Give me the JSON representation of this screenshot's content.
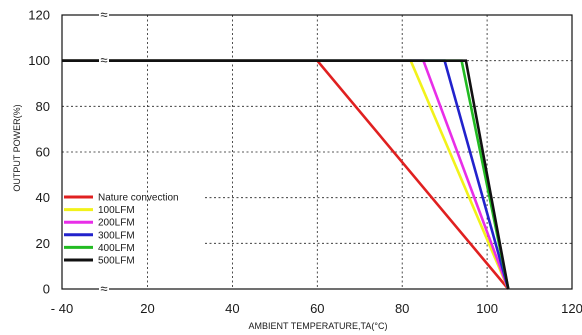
{
  "chart_data": {
    "type": "line",
    "xlabel": "AMBIENT TEMPERATURE,TA(°C)",
    "ylabel": "OUTPUT POWER(%)",
    "xlim": [
      -40,
      120
    ],
    "ylim": [
      0,
      120
    ],
    "x_ticks": [
      "- 40",
      "20",
      "40",
      "60",
      "80",
      "100",
      "120"
    ],
    "y_ticks": [
      "0",
      "20",
      "40",
      "60",
      "80",
      "100",
      "120"
    ],
    "axis_break_symbol": "≈",
    "grid": true,
    "legend_position": "bottom-left",
    "series": [
      {
        "name": "Nature convection",
        "color": "#e02020",
        "x": [
          -40,
          60,
          105
        ],
        "y": [
          100,
          100,
          0
        ]
      },
      {
        "name": "100LFM",
        "color": "#f2f21a",
        "x": [
          -40,
          82,
          105
        ],
        "y": [
          100,
          100,
          0
        ]
      },
      {
        "name": "200LFM",
        "color": "#e82ee8",
        "x": [
          -40,
          85,
          105
        ],
        "y": [
          100,
          100,
          0
        ]
      },
      {
        "name": "300LFM",
        "color": "#2222cc",
        "x": [
          -40,
          90,
          105
        ],
        "y": [
          100,
          100,
          0
        ]
      },
      {
        "name": "400LFM",
        "color": "#22bb22",
        "x": [
          -40,
          94,
          105
        ],
        "y": [
          100,
          100,
          0
        ]
      },
      {
        "name": "500LFM",
        "color": "#111111",
        "x": [
          -40,
          95,
          105
        ],
        "y": [
          100,
          100,
          0
        ]
      }
    ]
  }
}
